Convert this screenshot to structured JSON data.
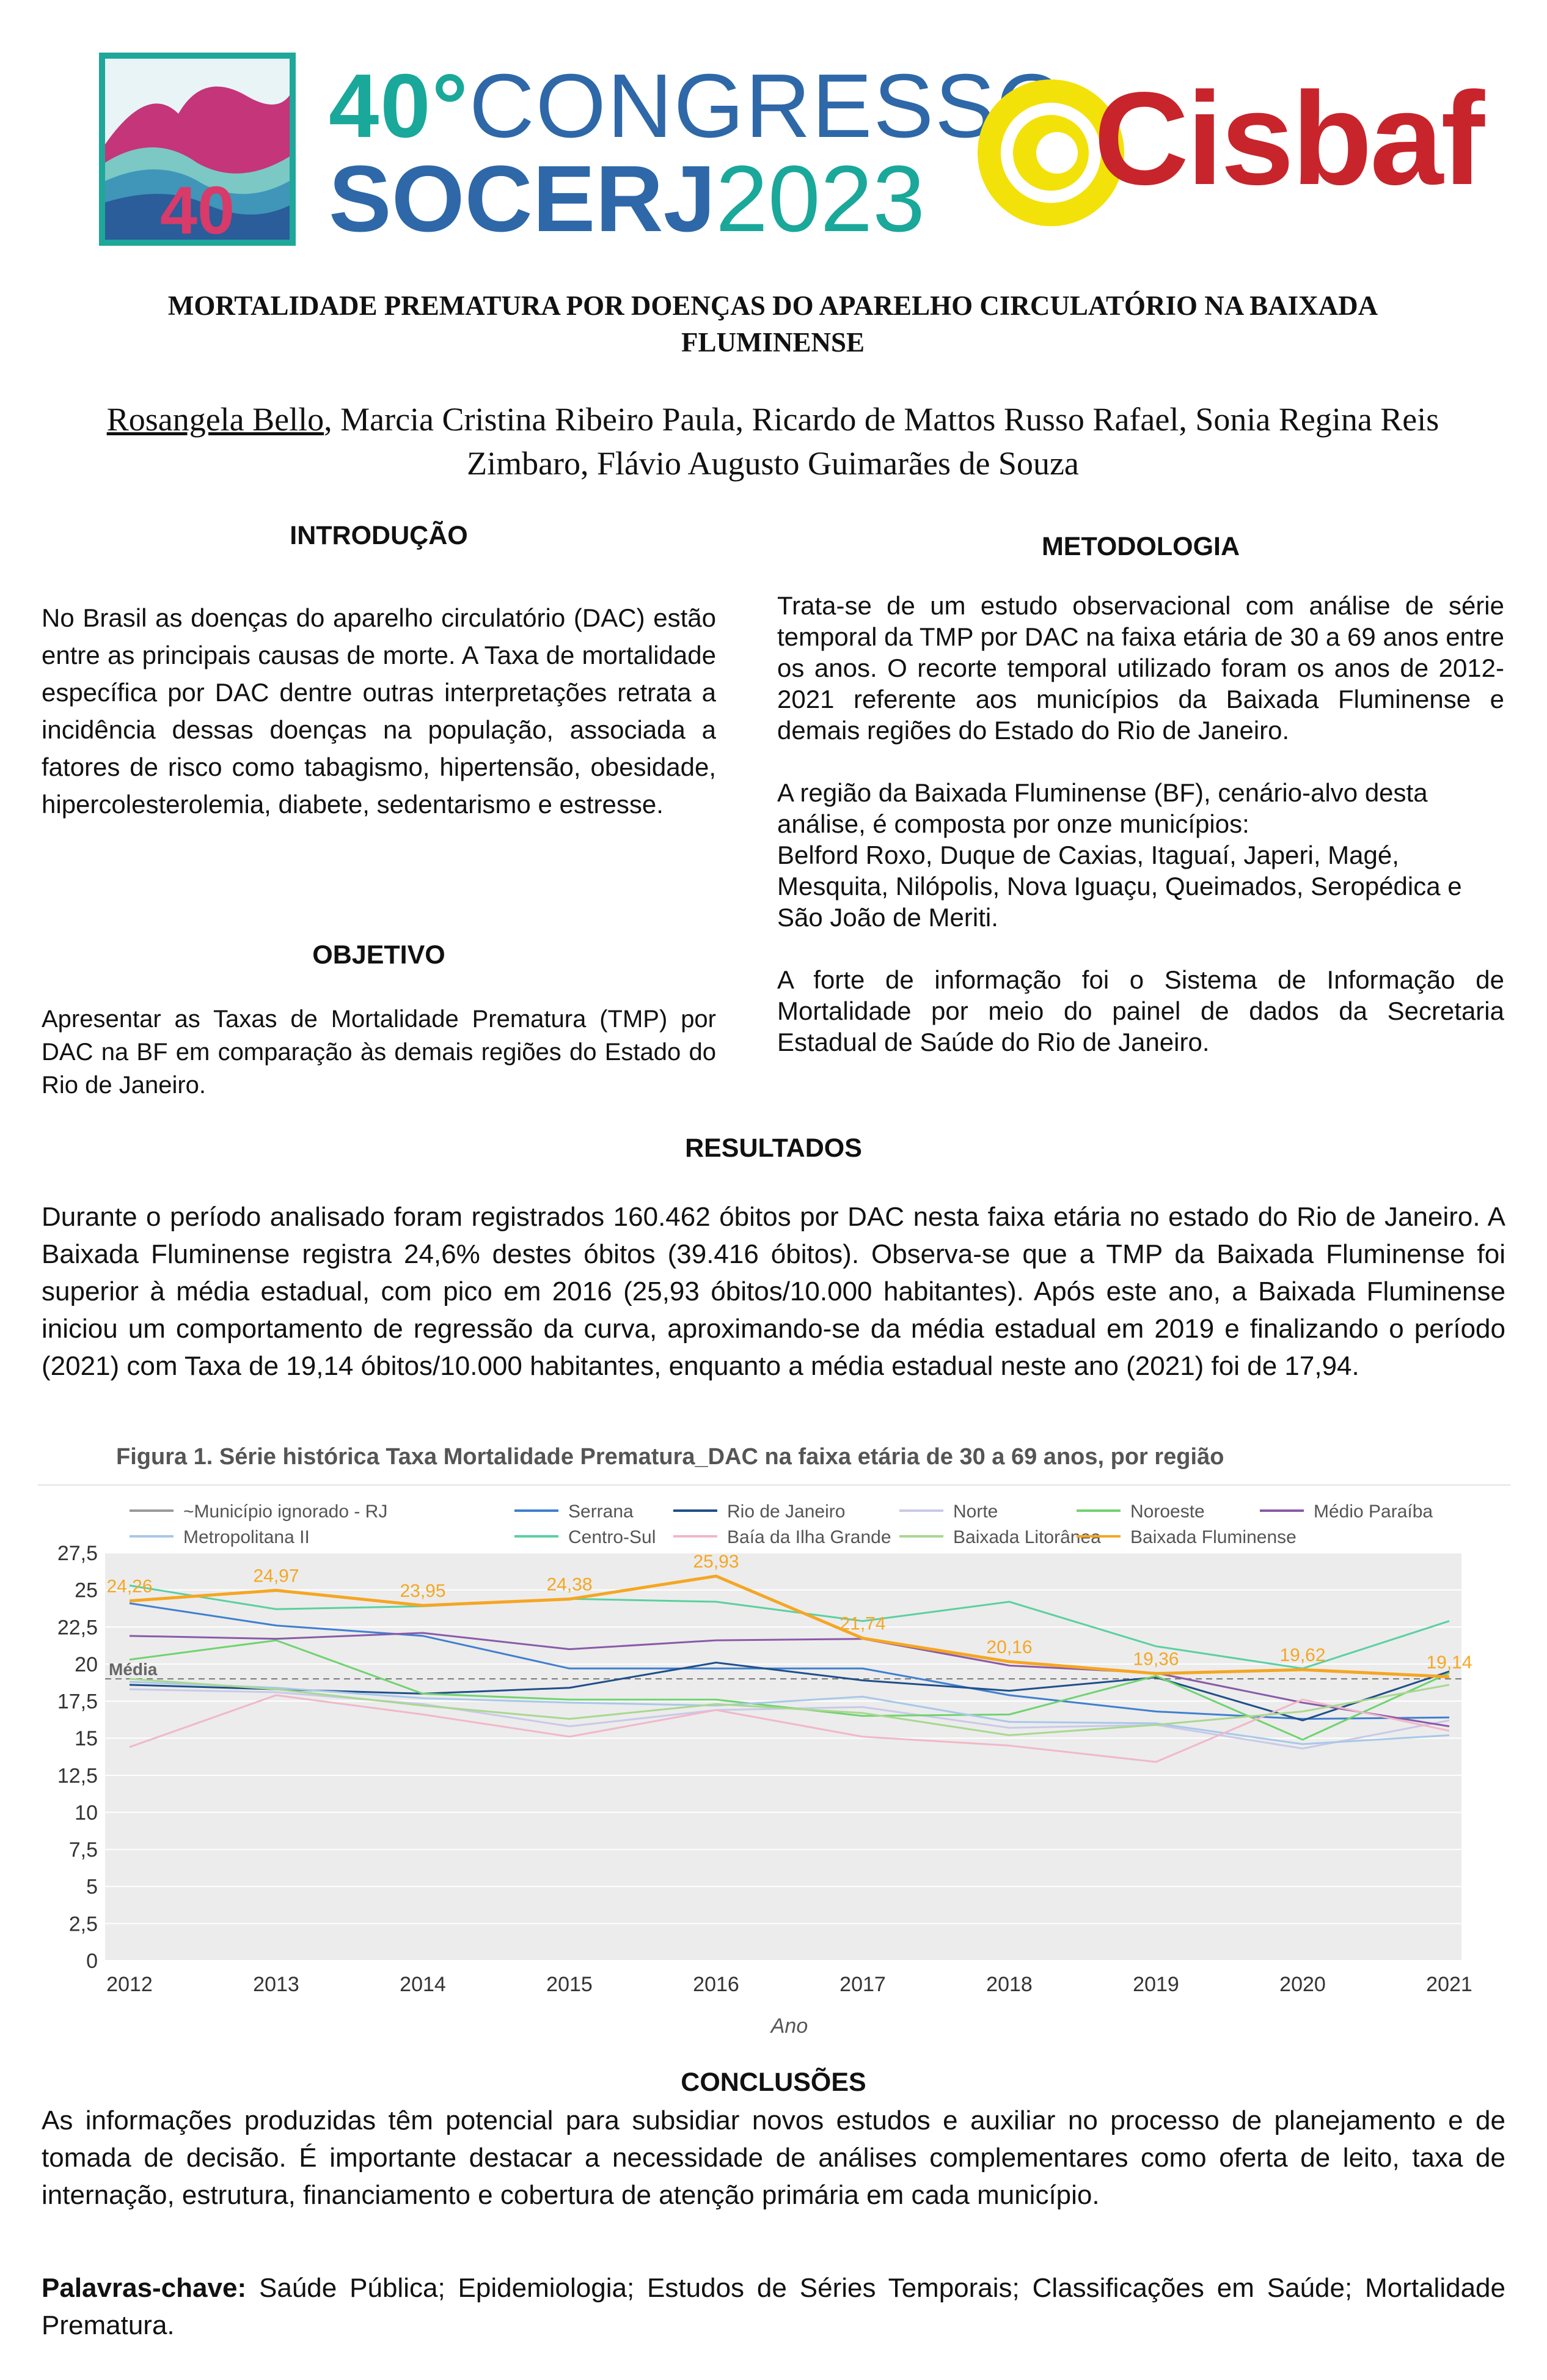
{
  "header": {
    "logo_badge_number": "40",
    "congress_line1_number": "40°",
    "congress_line1_word": "CONGRESSO",
    "congress_line2_org": "SOCERJ",
    "congress_line2_year": "2023",
    "partner_logo_text": "Cisbaf"
  },
  "title": "MORTALIDADE PREMATURA POR DOENÇAS DO APARELHO CIRCULATÓRIO NA BAIXADA FLUMINENSE",
  "authors": {
    "first": "Rosangela Bello",
    "rest": ", Marcia Cristina Ribeiro Paula, Ricardo de Mattos Russo Rafael, Sonia Regina Reis Zimbaro, Flávio Augusto Guimarães de Souza"
  },
  "introduction": {
    "heading": "INTRODUÇÃO",
    "text": "No Brasil as doenças do aparelho circulatório (DAC) estão entre as principais causas de morte. A Taxa de mortalidade específica por DAC dentre outras interpretações retrata a incidência dessas doenças na população, associada a fatores de risco como tabagismo, hipertensão, obesidade, hipercolesterolemia, diabete, sedentarismo e estresse."
  },
  "objective": {
    "heading": "OBJETIVO",
    "text": "Apresentar as Taxas de Mortalidade Prematura (TMP) por DAC na BF em comparação às demais regiões do Estado do Rio de Janeiro."
  },
  "methodology": {
    "heading": "METODOLOGIA",
    "p1": "Trata-se de um estudo observacional com análise de série temporal da TMP por DAC na faixa etária de 30 a 69 anos entre os anos. O recorte temporal utilizado foram os anos de 2012-2021 referente aos municípios da Baixada Fluminense e demais regiões do Estado do Rio de Janeiro.",
    "p2a": "A região da Baixada Fluminense (BF), cenário-alvo desta análise, é composta por onze municípios:",
    "p2b": "Belford Roxo, Duque de Caxias, Itaguaí, Japeri, Magé, Mesquita, Nilópolis, Nova Iguaçu, Queimados, Seropédica e São João de Meriti.",
    "p3": "A forte de informação foi o Sistema de Informação de Mortalidade por meio do painel de dados da Secretaria Estadual de Saúde do Rio de Janeiro."
  },
  "results": {
    "heading": "RESULTADOS",
    "text": "Durante o período analisado foram registrados 160.462 óbitos por DAC nesta faixa etária no estado do Rio de Janeiro. A Baixada Fluminense registra 24,6% destes óbitos (39.416 óbitos). Observa-se que a TMP da Baixada Fluminense foi superior à média estadual, com pico em 2016 (25,93 óbitos/10.000 habitantes). Após este ano, a Baixada Fluminense iniciou um comportamento de regressão da curva, aproximando-se da média estadual em 2019 e finalizando o período (2021) com Taxa de 19,14 óbitos/10.000 habitantes, enquanto a média estadual neste ano (2021) foi de 17,94."
  },
  "figure": {
    "caption": "Figura 1. Série histórica Taxa Mortalidade Prematura_DAC  na faixa etária de 30 a 69 anos, por região"
  },
  "chart_data": {
    "type": "line",
    "title": "",
    "xlabel": "Ano",
    "ylabel": "",
    "ylim": [
      0,
      27.5
    ],
    "yticks": [
      "0",
      "2,5",
      "5",
      "7,5",
      "10",
      "12,5",
      "15",
      "17,5",
      "20",
      "22,5",
      "25",
      "27,5"
    ],
    "x": [
      "2012",
      "2013",
      "2014",
      "2015",
      "2016",
      "2017",
      "2018",
      "2019",
      "2020",
      "2021"
    ],
    "grid": true,
    "legend_position": "top",
    "reference_line": {
      "label": "Média",
      "value": 19
    },
    "series": [
      {
        "name": "~Município ignorado - RJ",
        "color": "#9a9a9a",
        "values": [
          null,
          null,
          null,
          null,
          null,
          null,
          null,
          null,
          null,
          null
        ]
      },
      {
        "name": "Serrana",
        "color": "#3f7fd0",
        "values": [
          24.1,
          22.6,
          21.9,
          19.7,
          19.7,
          19.7,
          17.9,
          16.8,
          16.3,
          16.4
        ]
      },
      {
        "name": "Rio de Janeiro",
        "color": "#1f4f8a",
        "values": [
          18.6,
          18.3,
          18.0,
          18.4,
          20.1,
          18.9,
          18.2,
          19.1,
          16.2,
          19.5
        ]
      },
      {
        "name": "Norte",
        "color": "#c9c9e8",
        "values": [
          18.3,
          18.1,
          17.3,
          15.8,
          16.9,
          17.1,
          15.7,
          15.9,
          14.3,
          16.2
        ]
      },
      {
        "name": "Noroeste",
        "color": "#6fd36f",
        "values": [
          20.3,
          21.6,
          18.0,
          17.6,
          17.6,
          16.5,
          16.6,
          19.2,
          14.9,
          19.4
        ]
      },
      {
        "name": "Médio Paraíba",
        "color": "#8a5aa8",
        "values": [
          21.9,
          21.7,
          22.1,
          21.0,
          21.6,
          21.7,
          19.9,
          19.4,
          17.4,
          15.8
        ]
      },
      {
        "name": "Metropolitana II",
        "color": "#a8c8e8",
        "values": [
          18.8,
          18.4,
          17.7,
          17.4,
          17.2,
          17.8,
          16.1,
          16.0,
          14.6,
          15.2
        ]
      },
      {
        "name": "Centro-Sul",
        "color": "#5ad0a0",
        "values": [
          25.3,
          23.7,
          23.9,
          24.4,
          24.2,
          22.9,
          24.2,
          21.2,
          19.7,
          22.9
        ]
      },
      {
        "name": "Baía da Ilha Grande",
        "color": "#f0b8c8",
        "values": [
          14.4,
          17.9,
          16.6,
          15.1,
          16.9,
          15.1,
          14.5,
          13.4,
          17.6,
          15.5
        ]
      },
      {
        "name": "Baixada Litorânea",
        "color": "#a8d890",
        "values": [
          19.0,
          18.3,
          17.2,
          16.3,
          17.3,
          16.7,
          15.2,
          15.9,
          16.8,
          18.6
        ]
      },
      {
        "name": "Baixada Fluminense",
        "color": "#f5a623",
        "values": [
          24.26,
          24.97,
          23.95,
          24.38,
          25.93,
          21.74,
          20.16,
          19.36,
          19.62,
          19.14
        ]
      }
    ],
    "data_labels": {
      "series": "Baixada Fluminense",
      "labels": [
        "24,26",
        "24,97",
        "23,95",
        "24,38",
        "25,93",
        "21,74",
        "20,16",
        "19,36",
        "19,62",
        "19,14"
      ]
    }
  },
  "conclusions": {
    "heading": "CONCLUSÕES",
    "text": "As informações produzidas têm potencial para subsidiar novos estudos e auxiliar no processo de planejamento e de tomada de decisão. É importante destacar a necessidade de análises complementares como oferta de leito, taxa de internação, estrutura, financiamento e cobertura de atenção primária em cada município."
  },
  "keywords": {
    "label": "Palavras-chave:",
    "text": " Saúde Pública; Epidemiologia; Estudos de Séries Temporais; Classificações em Saúde; Mortalidade Prematura."
  }
}
